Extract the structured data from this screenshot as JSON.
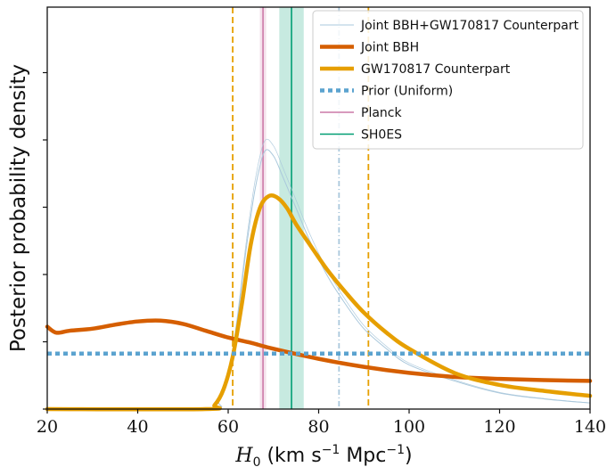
{
  "chart_data": {
    "type": "line",
    "xlabel": "H0 (km s−1 Mpc−1)",
    "xlabel_parts": {
      "main": "H",
      "sub": "0",
      "unit": "(km s",
      "exp1": "−1",
      "mid": "Mpc",
      "exp2": "−1",
      "close": ")"
    },
    "ylabel": "Posterior probability density",
    "xlim": [
      20,
      140
    ],
    "ylim": [
      0,
      1.0
    ],
    "xticks": [
      "20",
      "40",
      "60",
      "80",
      "100",
      "120",
      "140"
    ],
    "legend_position": "top-right",
    "grid": false,
    "series": [
      {
        "name": "Joint BBH+GW170817 Counterpart",
        "color": "#aac8dc",
        "style": "thin",
        "x": [
          20,
          55,
          58,
          60,
          62,
          64,
          66,
          68,
          70,
          72,
          75,
          78,
          82,
          86,
          90,
          95,
          100,
          110,
          120,
          130,
          140
        ],
        "y": [
          0.0,
          0.0,
          0.02,
          0.08,
          0.22,
          0.4,
          0.55,
          0.64,
          0.63,
          0.58,
          0.5,
          0.42,
          0.33,
          0.26,
          0.2,
          0.15,
          0.11,
          0.07,
          0.04,
          0.025,
          0.015
        ]
      },
      {
        "name": "Joint BBH",
        "color": "#d55e00",
        "style": "thick",
        "x": [
          20,
          22,
          25,
          30,
          35,
          40,
          45,
          50,
          55,
          60,
          65,
          70,
          80,
          90,
          100,
          110,
          120,
          130,
          140
        ],
        "y": [
          0.205,
          0.19,
          0.195,
          0.2,
          0.21,
          0.218,
          0.22,
          0.212,
          0.195,
          0.178,
          0.165,
          0.15,
          0.125,
          0.105,
          0.09,
          0.08,
          0.075,
          0.072,
          0.07
        ]
      },
      {
        "name": "GW170817 Counterpart",
        "color": "#e69f00",
        "style": "thick",
        "x": [
          20,
          55,
          57,
          59,
          61,
          63,
          65,
          67,
          69,
          71,
          73,
          75,
          78,
          82,
          86,
          90,
          95,
          100,
          110,
          120,
          130,
          140
        ],
        "y": [
          0.0,
          0.0,
          0.01,
          0.05,
          0.13,
          0.26,
          0.41,
          0.5,
          0.53,
          0.525,
          0.5,
          0.46,
          0.41,
          0.345,
          0.29,
          0.24,
          0.19,
          0.15,
          0.09,
          0.06,
          0.045,
          0.033
        ]
      },
      {
        "name": "Prior (Uniform)",
        "color": "#5ba3cf",
        "style": "dotted",
        "x": [
          20,
          140
        ],
        "y": [
          0.138,
          0.138
        ]
      }
    ],
    "vlines": [
      {
        "x": 61,
        "color": "#e69f00",
        "style": "dashed"
      },
      {
        "x": 91,
        "color": "#e69f00",
        "style": "dashed"
      },
      {
        "x": 84.5,
        "color": "#aac8dc",
        "style": "dashdot"
      },
      {
        "x": 67.7,
        "color": "#cc79a7",
        "style": "solid"
      },
      {
        "x": 74,
        "color": "#009e73",
        "style": "solid"
      }
    ],
    "bands": [
      {
        "name": "Planck",
        "center": 67.7,
        "low": 67.0,
        "high": 68.4,
        "color": "#cc79a7"
      },
      {
        "name": "SH0ES",
        "center": 74.0,
        "low": 71.3,
        "high": 76.7,
        "color": "#009e73"
      }
    ],
    "legend": [
      {
        "label": "Joint BBH+GW170817 Counterpart",
        "color": "#aac8dc",
        "style": "thin"
      },
      {
        "label": "Joint BBH",
        "color": "#d55e00",
        "style": "thick"
      },
      {
        "label": "GW170817 Counterpart",
        "color": "#e69f00",
        "style": "thick"
      },
      {
        "label": "Prior (Uniform)",
        "color": "#5ba3cf",
        "style": "dotted"
      },
      {
        "label": "Planck",
        "color": "#cc79a7",
        "style": "solid"
      },
      {
        "label": "SH0ES",
        "color": "#009e73",
        "style": "solid"
      }
    ]
  }
}
